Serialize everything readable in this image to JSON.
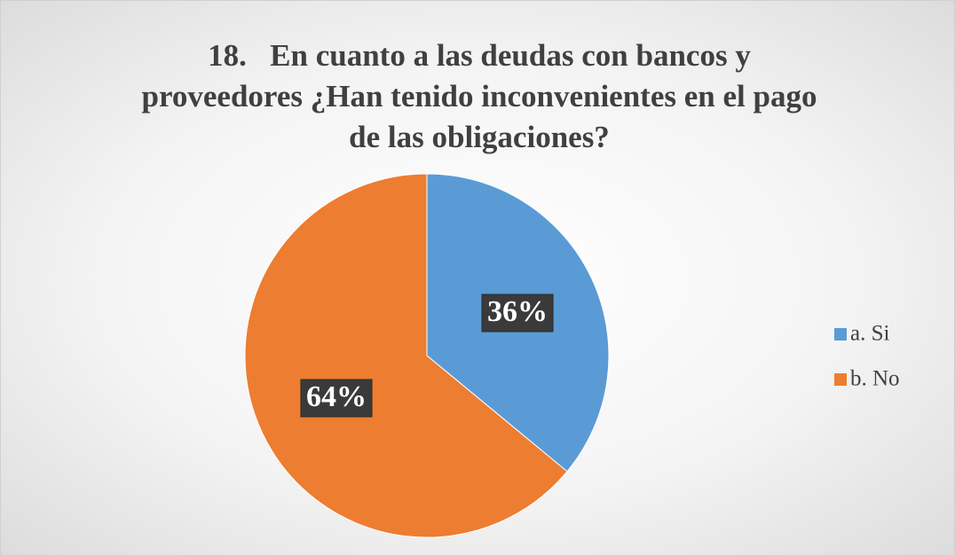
{
  "chart_data": {
    "type": "pie",
    "title": "18.   En cuanto a las deudas con bancos y proveedores ¿Han tenido inconvenientes en el pago de las obligaciones?",
    "categories": [
      "a. Si",
      "b. No"
    ],
    "values": [
      36,
      64
    ],
    "value_labels": [
      "36%",
      "64%"
    ],
    "colors": [
      "#5b9bd5",
      "#ed7d31"
    ],
    "legend": "right"
  }
}
